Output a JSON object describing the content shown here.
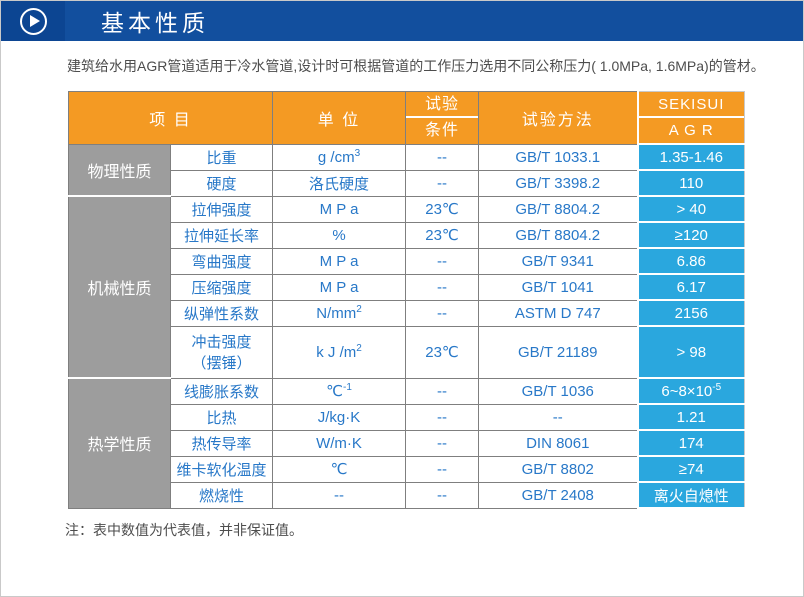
{
  "header": {
    "title": "基本性质",
    "icon": "play-icon"
  },
  "intro": "建筑给水用AGR管道适用于冷水管道,设计时可根据管道的工作压力选用不同公称压力( 1.0MPa, 1.6MPa)的管材。",
  "table": {
    "columns": {
      "item": "项 目",
      "unit": "单 位",
      "condition_top": "试验",
      "condition_bottom": "条件",
      "method": "试验方法",
      "brand_top": "SEKISUI",
      "brand_bottom": "A G R"
    },
    "groups": [
      {
        "category": "物理性质",
        "rows": [
          {
            "property": "比重",
            "unit": "g /cm^3",
            "condition": "--",
            "method": "GB/T 1033.1",
            "value": "1.35-1.46"
          },
          {
            "property": "硬度",
            "unit": "洛氏硬度",
            "condition": "--",
            "method": "GB/T 3398.2",
            "value": "110"
          }
        ]
      },
      {
        "category": "机械性质",
        "rows": [
          {
            "property": "拉伸强度",
            "unit": "M P a",
            "condition": "23℃",
            "method": "GB/T 8804.2",
            "value": "> 40"
          },
          {
            "property": "拉伸延长率",
            "unit": "%",
            "condition": "23℃",
            "method": "GB/T 8804.2",
            "value": "≥120"
          },
          {
            "property": "弯曲强度",
            "unit": "M P a",
            "condition": "--",
            "method": "GB/T 9341",
            "value": "6.86"
          },
          {
            "property": "压缩强度",
            "unit": "M P a",
            "condition": "--",
            "method": "GB/T 1041",
            "value": "6.17"
          },
          {
            "property": "纵弹性系数",
            "unit": "N/mm^2",
            "condition": "--",
            "method": "ASTM D 747",
            "value": "2156"
          },
          {
            "property": "冲击强度\n（摆锤）",
            "unit": "k J /m^2",
            "condition": "23℃",
            "method": "GB/T 21189",
            "value": "> 98",
            "tall": true
          }
        ]
      },
      {
        "category": "热学性质",
        "rows": [
          {
            "property": "线膨胀系数",
            "unit": "℃^-1",
            "condition": "--",
            "method": "GB/T 1036",
            "value": "6~8×10^-5"
          },
          {
            "property": "比热",
            "unit": "J/kg·K",
            "condition": "--",
            "method": "--",
            "value": "1.21"
          },
          {
            "property": "热传导率",
            "unit": "W/m·K",
            "condition": "--",
            "method": "DIN 8061",
            "value": "174"
          },
          {
            "property": "维卡软化温度",
            "unit": "℃",
            "condition": "--",
            "method": "GB/T 8802",
            "value": "≥74"
          },
          {
            "property": "燃烧性",
            "unit": "--",
            "condition": "--",
            "method": "GB/T 2408",
            "value": "离火自熄性"
          }
        ]
      }
    ]
  },
  "note": "注：表中数值为代表值，并非保证值。",
  "colors": {
    "bar_blue": "#124f9e",
    "bar_blue_dark": "#0c4592",
    "header_orange": "#f49a23",
    "cell_blue": "#2aa7de",
    "category_gray": "#9d9d9d",
    "text_blue": "#2878c8",
    "border_gray": "#7f7f7f",
    "text_dark": "#4d4d4d"
  }
}
